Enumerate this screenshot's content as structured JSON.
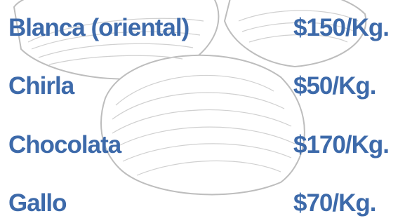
{
  "items": [
    {
      "name": "Blanca (oriental)",
      "price": "$150/Kg."
    },
    {
      "name": "Chirla",
      "price": "$50/Kg."
    },
    {
      "name": "Chocolata",
      "price": "$170/Kg."
    },
    {
      "name": "Gallo",
      "price": "$70/Kg."
    }
  ]
}
